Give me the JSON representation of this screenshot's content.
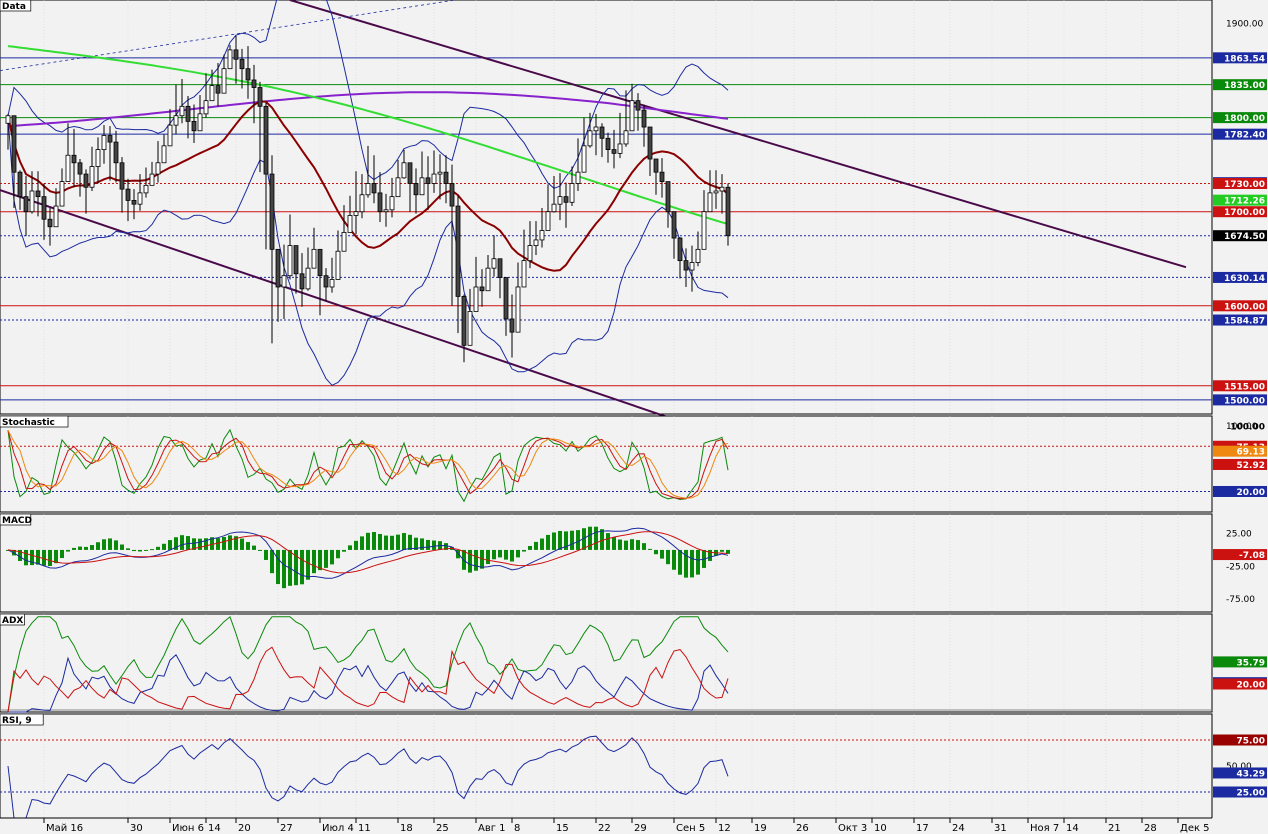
{
  "chart_data": {
    "type": "line",
    "panels": [
      {
        "name": "Data",
        "kind": "candles",
        "ylim": [
          1485,
          1925
        ],
        "axis_ticks": [
          1900
        ],
        "price_labels": [
          {
            "text": "1863.54",
            "value": 1863.54,
            "bg": "#1b2aa0",
            "fg": "#ffffff",
            "line": "#1b2aa0",
            "dash": false
          },
          {
            "text": "1835.00",
            "value": 1835.0,
            "bg": "#0a8a0a",
            "fg": "#ffffff",
            "line": "#0a8a0a",
            "dash": false
          },
          {
            "text": "1800.00",
            "value": 1800.0,
            "bg": "#0a8a0a",
            "fg": "#ffffff",
            "line": "#0a8a0a",
            "dash": false
          },
          {
            "text": "1782.40",
            "value": 1782.4,
            "bg": "#1b2aa0",
            "fg": "#ffffff",
            "line": "#1b2aa0",
            "dash": false
          },
          {
            "text": "1730.86",
            "value": 1730.86,
            "bg": "#1b2aa0",
            "fg": "#ffffff",
            "line": null,
            "dash": false
          },
          {
            "text": "1730.00",
            "value": 1730.0,
            "bg": "#cc1111",
            "fg": "#ffffff",
            "line": "#cc1111",
            "dash": true
          },
          {
            "text": "1712.26",
            "value": 1712.26,
            "bg": "#22cc22",
            "fg": "#ffffff",
            "line": null,
            "dash": false
          },
          {
            "text": "1700.00",
            "value": 1700.0,
            "bg": "#cc1111",
            "fg": "#ffffff",
            "line": "#cc1111",
            "dash": false
          },
          {
            "text": "1674.50",
            "value": 1674.5,
            "bg": "#000000",
            "fg": "#ffffff",
            "line": "#1b2aa0",
            "dash": true
          },
          {
            "text": "1630.14",
            "value": 1630.14,
            "bg": "#1b2aa0",
            "fg": "#ffffff",
            "line": "#1b2aa0",
            "dash": true
          },
          {
            "text": "1600.00",
            "value": 1600.0,
            "bg": "#cc1111",
            "fg": "#ffffff",
            "line": "#cc1111",
            "dash": false
          },
          {
            "text": "1584.87",
            "value": 1584.87,
            "bg": "#1b2aa0",
            "fg": "#ffffff",
            "line": "#1b2aa0",
            "dash": true
          },
          {
            "text": "1515.00",
            "value": 1515.0,
            "bg": "#cc1111",
            "fg": "#ffffff",
            "line": "#cc1111",
            "dash": false
          },
          {
            "text": "1500.00",
            "value": 1500.0,
            "bg": "#1b2aa0",
            "fg": "#ffffff",
            "line": "#1b2aa0",
            "dash": false
          }
        ],
        "closes": [
          1802,
          1742,
          1716,
          1700,
          1722,
          1716,
          1692,
          1684,
          1706,
          1732,
          1760,
          1752,
          1740,
          1726,
          1748,
          1766,
          1781,
          1774,
          1752,
          1724,
          1712,
          1708,
          1720,
          1728,
          1740,
          1752,
          1770,
          1792,
          1802,
          1812,
          1796,
          1786,
          1804,
          1818,
          1834,
          1826,
          1852,
          1872,
          1862,
          1852,
          1840,
          1832,
          1812,
          1740,
          1660,
          1620,
          1632,
          1664,
          1634,
          1618,
          1640,
          1660,
          1632,
          1620,
          1628,
          1658,
          1678,
          1696,
          1700,
          1718,
          1730,
          1720,
          1700,
          1702,
          1716,
          1736,
          1752,
          1730,
          1718,
          1736,
          1730,
          1740,
          1742,
          1730,
          1706,
          1610,
          1558,
          1594,
          1620,
          1616,
          1640,
          1650,
          1630,
          1586,
          1572,
          1620,
          1648,
          1664,
          1670,
          1680,
          1700,
          1708,
          1716,
          1710,
          1730,
          1742,
          1770,
          1786,
          1790,
          1778,
          1766,
          1762,
          1772,
          1786,
          1818,
          1808,
          1790,
          1756,
          1742,
          1732,
          1700,
          1672,
          1648,
          1638,
          1646,
          1660,
          1700,
          1720,
          1722,
          1726,
          1674.5
        ],
        "ranges": [
          [
            1804,
            1766
          ],
          [
            1771,
            1704
          ],
          [
            1744,
            1702
          ],
          [
            1738,
            1674
          ],
          [
            1743,
            1698
          ],
          [
            1743,
            1695
          ],
          [
            1730,
            1670
          ],
          [
            1704,
            1664
          ],
          [
            1725,
            1690
          ],
          [
            1746,
            1710
          ],
          [
            1794,
            1744
          ],
          [
            1788,
            1726
          ],
          [
            1756,
            1716
          ],
          [
            1745,
            1698
          ],
          [
            1769,
            1722
          ],
          [
            1779,
            1730
          ],
          [
            1792,
            1751
          ],
          [
            1791,
            1733
          ],
          [
            1786,
            1731
          ],
          [
            1758,
            1699
          ],
          [
            1735,
            1690
          ],
          [
            1724,
            1692
          ],
          [
            1740,
            1701
          ],
          [
            1747,
            1715
          ],
          [
            1753,
            1728
          ],
          [
            1775,
            1731
          ],
          [
            1782,
            1752
          ],
          [
            1809,
            1774
          ],
          [
            1835,
            1782
          ],
          [
            1841,
            1794
          ],
          [
            1823,
            1778
          ],
          [
            1814,
            1773
          ],
          [
            1824,
            1786
          ],
          [
            1847,
            1800
          ],
          [
            1851,
            1818
          ],
          [
            1858,
            1812
          ],
          [
            1867,
            1838
          ],
          [
            1877,
            1854
          ],
          [
            1887,
            1836
          ],
          [
            1873,
            1831
          ],
          [
            1876,
            1820
          ],
          [
            1856,
            1794
          ],
          [
            1838,
            1742
          ],
          [
            1816,
            1660
          ],
          [
            1760,
            1560
          ],
          [
            1660,
            1583
          ],
          [
            1665,
            1586
          ],
          [
            1697,
            1628
          ],
          [
            1659,
            1613
          ],
          [
            1656,
            1599
          ],
          [
            1662,
            1616
          ],
          [
            1683,
            1640
          ],
          [
            1660,
            1590
          ],
          [
            1640,
            1605
          ],
          [
            1651,
            1614
          ],
          [
            1680,
            1634
          ],
          [
            1707,
            1661
          ],
          [
            1717,
            1680
          ],
          [
            1743,
            1676
          ],
          [
            1740,
            1693
          ],
          [
            1770,
            1715
          ],
          [
            1760,
            1709
          ],
          [
            1742,
            1689
          ],
          [
            1719,
            1684
          ],
          [
            1736,
            1694
          ],
          [
            1755,
            1718
          ],
          [
            1766,
            1735
          ],
          [
            1751,
            1700
          ],
          [
            1746,
            1698
          ],
          [
            1764,
            1719
          ],
          [
            1759,
            1702
          ],
          [
            1765,
            1720
          ],
          [
            1761,
            1713
          ],
          [
            1760,
            1709
          ],
          [
            1750,
            1600
          ],
          [
            1717,
            1571
          ],
          [
            1612,
            1540
          ],
          [
            1618,
            1575
          ],
          [
            1652,
            1599
          ],
          [
            1639,
            1599
          ],
          [
            1654,
            1617
          ],
          [
            1675,
            1631
          ],
          [
            1646,
            1608
          ],
          [
            1622,
            1568
          ],
          [
            1612,
            1545
          ],
          [
            1646,
            1598
          ],
          [
            1681,
            1633
          ],
          [
            1690,
            1640
          ],
          [
            1690,
            1654
          ],
          [
            1704,
            1662
          ],
          [
            1729,
            1680
          ],
          [
            1738,
            1699
          ],
          [
            1741,
            1691
          ],
          [
            1731,
            1683
          ],
          [
            1748,
            1706
          ],
          [
            1778,
            1722
          ],
          [
            1800,
            1752
          ],
          [
            1805,
            1768
          ],
          [
            1804,
            1760
          ],
          [
            1794,
            1758
          ],
          [
            1784,
            1752
          ],
          [
            1787,
            1746
          ],
          [
            1805,
            1757
          ],
          [
            1829,
            1769
          ],
          [
            1836,
            1791
          ],
          [
            1826,
            1786
          ],
          [
            1814,
            1769
          ],
          [
            1783,
            1738
          ],
          [
            1754,
            1718
          ],
          [
            1757,
            1715
          ],
          [
            1714,
            1683
          ],
          [
            1700,
            1650
          ],
          [
            1673,
            1629
          ],
          [
            1661,
            1620
          ],
          [
            1664,
            1615
          ],
          [
            1679,
            1642
          ],
          [
            1723,
            1682
          ],
          [
            1744,
            1702
          ],
          [
            1744,
            1703
          ],
          [
            1740,
            1698
          ],
          [
            1730,
            1664
          ]
        ]
      },
      {
        "name": "Stochastic",
        "ylim": [
          -5,
          112
        ],
        "axis_ticks": [
          100,
          20
        ],
        "price_labels": [
          {
            "text": "100.00",
            "value": 100,
            "bg": null,
            "fg": "#000000",
            "line": null,
            "dash": false
          },
          {
            "text": "75.13",
            "value": 75.13,
            "bg": "#cc1111",
            "fg": "#ffffff",
            "line": "#cc1111",
            "dash": true
          },
          {
            "text": "69.13",
            "value": 69.13,
            "bg": "#ee8811",
            "fg": "#ffffff",
            "line": null,
            "dash": false
          },
          {
            "text": "52.92",
            "value": 52.92,
            "bg": "#cc1111",
            "fg": "#ffffff",
            "line": null,
            "dash": false
          },
          {
            "text": "20.00",
            "value": 20,
            "bg": "#1b2aa0",
            "fg": "#ffffff",
            "line": "#1b2aa0",
            "dash": true
          }
        ]
      },
      {
        "name": "MACD",
        "ylim": [
          -95,
          55
        ],
        "axis_ticks": [
          25,
          -25,
          -75
        ],
        "price_labels": [
          {
            "text": "-7.08",
            "value": -7.08,
            "bg": "#cc1111",
            "fg": "#ffffff",
            "line": null,
            "dash": false
          }
        ]
      },
      {
        "name": "ADX",
        "ylim": [
          0,
          70
        ],
        "axis_ticks": [],
        "price_labels": [
          {
            "text": "35.79",
            "value": 35.79,
            "bg": "#0a8a0a",
            "fg": "#ffffff",
            "line": null,
            "dash": false
          },
          {
            "text": "20.94",
            "value": 20.94,
            "bg": "#1b2aa0",
            "fg": "#ffffff",
            "line": null,
            "dash": false
          },
          {
            "text": "20.00",
            "value": 20.0,
            "bg": "#cc1111",
            "fg": "#ffffff",
            "line": null,
            "dash": false
          }
        ]
      },
      {
        "name": "RSI, 9",
        "ylim": [
          0,
          100
        ],
        "axis_ticks": [
          50
        ],
        "price_labels": [
          {
            "text": "75.00",
            "value": 75,
            "bg": "#990000",
            "fg": "#ffffff",
            "line": "#cc1111",
            "dash": true
          },
          {
            "text": "43.29",
            "value": 43.29,
            "bg": "#1b2aa0",
            "fg": "#ffffff",
            "line": null,
            "dash": false
          },
          {
            "text": "25.00",
            "value": 25,
            "bg": "#1b2aa0",
            "fg": "#ffffff",
            "line": "#1b2aa0",
            "dash": true
          }
        ]
      }
    ],
    "x_labels": [
      {
        "text": "Май 16",
        "bar": 6
      },
      {
        "text": "30",
        "bar": 20
      },
      {
        "text": "Июн 6",
        "bar": 27
      },
      {
        "text": "14",
        "bar": 33
      },
      {
        "text": "20",
        "bar": 38
      },
      {
        "text": "27",
        "bar": 45
      },
      {
        "text": "Июл 4",
        "bar": 52
      },
      {
        "text": "11",
        "bar": 58
      },
      {
        "text": "18",
        "bar": 65
      },
      {
        "text": "25",
        "bar": 71
      },
      {
        "text": "Авг 1",
        "bar": 78
      },
      {
        "text": "8",
        "bar": 84
      },
      {
        "text": "15",
        "bar": 91
      },
      {
        "text": "22",
        "bar": 98
      },
      {
        "text": "29",
        "bar": 104
      },
      {
        "text": "Сен 5",
        "bar": 111
      },
      {
        "text": "12",
        "bar": 118
      },
      {
        "text": "19",
        "bar": 124
      },
      {
        "text": "26",
        "bar": 131
      },
      {
        "text": "Окт 3",
        "bar": 138
      },
      {
        "text": "10",
        "bar": 144
      },
      {
        "text": "17",
        "bar": 151
      },
      {
        "text": "24",
        "bar": 157
      },
      {
        "text": "31",
        "bar": 164
      },
      {
        "text": "Ноя 7",
        "bar": 170
      },
      {
        "text": "14",
        "bar": 176
      },
      {
        "text": "21",
        "bar": 183
      },
      {
        "text": "28",
        "bar": 189
      },
      {
        "text": "Дек 5",
        "bar": 195
      }
    ],
    "colors": {
      "background": "#f2f2f2",
      "grid": "#cfcfcf",
      "ma_short": "#8b0000",
      "ma_mid": "#33dd33",
      "ma_long": "#8822cc",
      "bands": "#1b2aa0",
      "trend": "#4a0a4a",
      "stoch_k": "#0a8a0a",
      "stoch_d": "#cc1111",
      "stoch_slow": "#ee8811",
      "macd_main": "#1b2aa0",
      "macd_signal": "#cc1111",
      "macd_hist": "#0a8a0a",
      "adx": "#0a8a0a",
      "di_plus": "#1b2aa0",
      "di_minus": "#cc1111",
      "rsi": "#1b2aa0"
    },
    "grid": true
  }
}
